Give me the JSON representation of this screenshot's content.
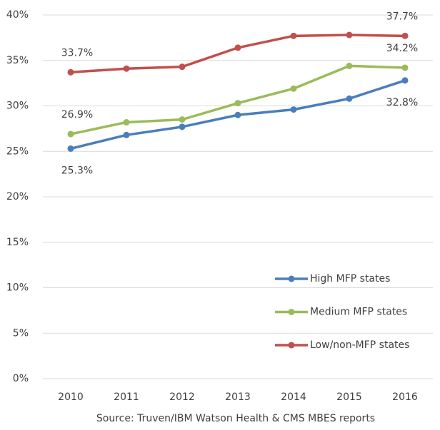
{
  "chart_data": {
    "type": "line",
    "categories": [
      "2010",
      "2011",
      "2012",
      "2013",
      "2014",
      "2015",
      "2016"
    ],
    "series": [
      {
        "name": "High MFP states",
        "color": "#4a7ebb",
        "values": [
          25.3,
          26.8,
          27.7,
          29.0,
          29.6,
          30.8,
          32.8
        ],
        "value_labels": [
          "25.3%",
          null,
          null,
          null,
          null,
          null,
          "32.8%"
        ]
      },
      {
        "name": "Medium MFP states",
        "color": "#9bbb59",
        "values": [
          26.9,
          28.2,
          28.5,
          30.3,
          31.9,
          34.4,
          34.2
        ],
        "value_labels": [
          "26.9%",
          null,
          null,
          null,
          null,
          null,
          "34.2%"
        ]
      },
      {
        "name": "Low/non-MFP states",
        "color": "#c0504d",
        "values": [
          33.7,
          34.1,
          34.3,
          36.4,
          37.7,
          37.8,
          37.7
        ],
        "value_labels": [
          "33.7%",
          null,
          null,
          null,
          null,
          null,
          "37.7%"
        ]
      }
    ],
    "ylim": [
      0,
      40
    ],
    "yticks": [
      {
        "value": 0,
        "label": "0%"
      },
      {
        "value": 5,
        "label": "5%"
      },
      {
        "value": 10,
        "label": "10%"
      },
      {
        "value": 15,
        "label": "15%"
      },
      {
        "value": 20,
        "label": "20%"
      },
      {
        "value": 25,
        "label": "25%"
      },
      {
        "value": 30,
        "label": "30%"
      },
      {
        "value": 35,
        "label": "35%"
      },
      {
        "value": 40,
        "label": "40%"
      }
    ],
    "grid": true,
    "legend": "lower right",
    "source": "Source: Truven/IBM Watson Health & CMS MBES reports"
  }
}
